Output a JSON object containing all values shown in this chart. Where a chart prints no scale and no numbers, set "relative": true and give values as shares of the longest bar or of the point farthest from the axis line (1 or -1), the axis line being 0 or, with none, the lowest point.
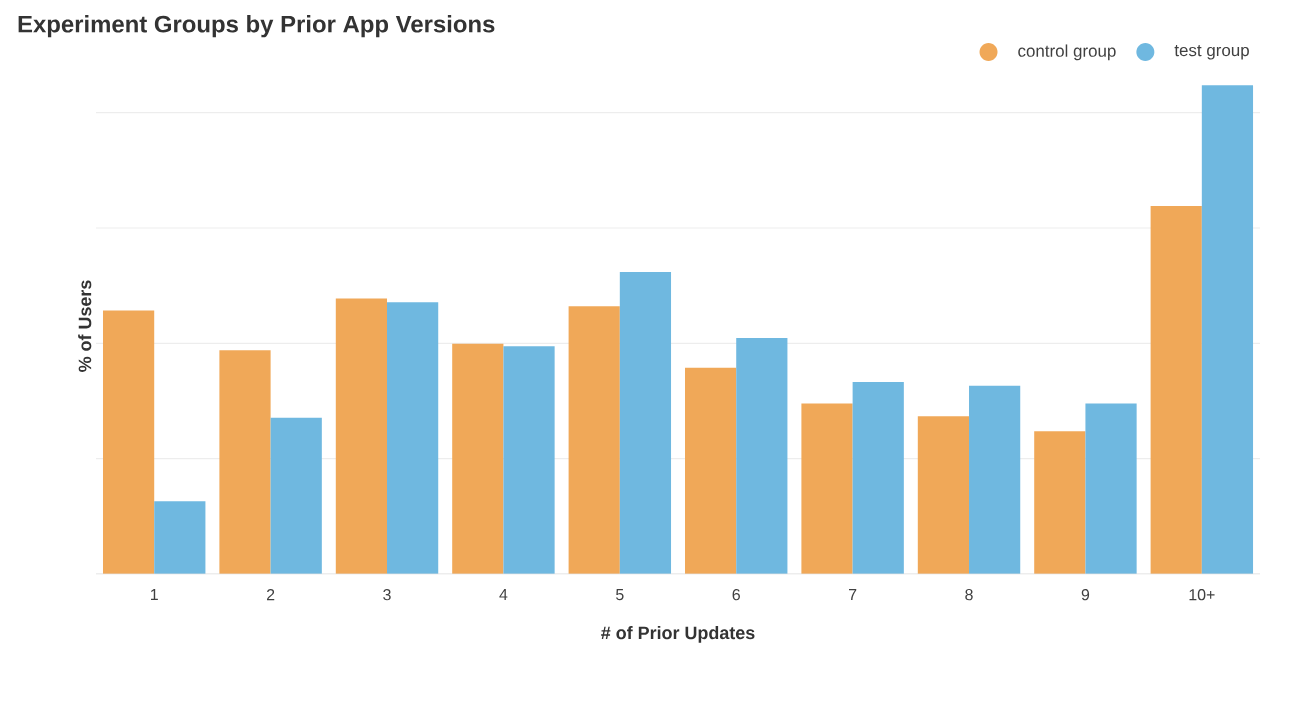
{
  "chart_data": {
    "type": "bar",
    "title": "Experiment Groups by Prior App Versions",
    "xlabel": "# of Prior Updates",
    "ylabel": "% of Users",
    "categories": [
      "1",
      "2",
      "3",
      "4",
      "5",
      "6",
      "7",
      "8",
      "9",
      "10+"
    ],
    "relative": true,
    "grid": "y",
    "legend": "top right",
    "series": [
      {
        "name": "control group",
        "color": "#f0a858",
        "values": [
          0.539,
          0.458,
          0.564,
          0.471,
          0.548,
          0.422,
          0.349,
          0.323,
          0.292,
          0.753
        ]
      },
      {
        "name": "test group",
        "color": "#6fb8e0",
        "values": [
          0.149,
          0.32,
          0.556,
          0.466,
          0.618,
          0.483,
          0.393,
          0.385,
          0.349,
          1
        ]
      }
    ]
  }
}
